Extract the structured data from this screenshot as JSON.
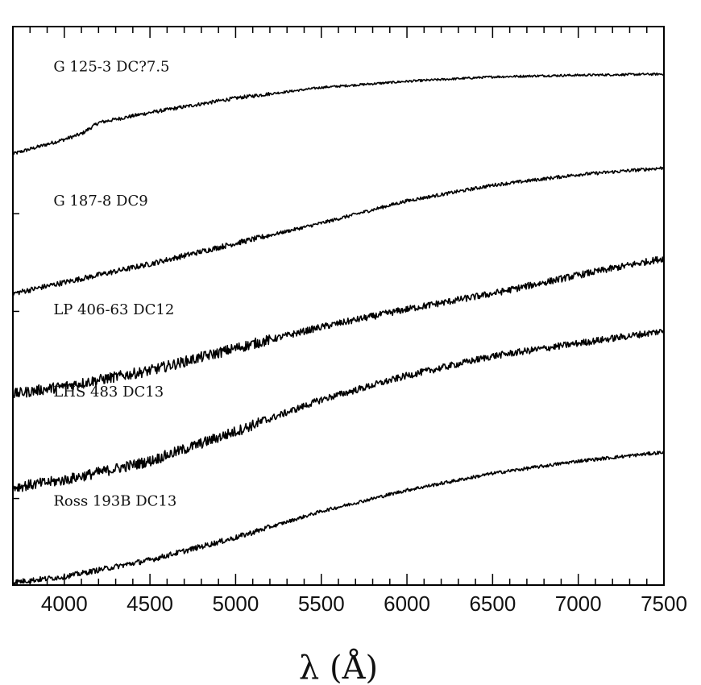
{
  "chart_data": {
    "type": "line",
    "title": "",
    "xlabel": "λ (Å)",
    "ylabel": "",
    "xlim": [
      3700,
      7500
    ],
    "x_ticks": [
      4000,
      4500,
      5000,
      5500,
      6000,
      6500,
      7000,
      7500
    ],
    "x_tick_labels": [
      "4000",
      "4500",
      "5000",
      "5500",
      "6000",
      "6500",
      "7000",
      "7500"
    ],
    "ylim": [
      0,
      1
    ],
    "y_ticks_labeled": false,
    "grid": false,
    "legend": "none",
    "note": "",
    "series": [
      {
        "name": "G 125-3 DC?7.5",
        "label_x": 4200,
        "label_y": 0.92,
        "x": [
          3700,
          4000,
          4100,
          4200,
          4500,
          5000,
          5500,
          6000,
          6500,
          6800,
          7000,
          7500
        ],
        "y": [
          0.772,
          0.798,
          0.808,
          0.828,
          0.846,
          0.872,
          0.891,
          0.902,
          0.91,
          0.912,
          0.913,
          0.915
        ],
        "noise": 0.002
      },
      {
        "name": "G 187-8 DC9",
        "label_x": 4200,
        "label_y": 0.68,
        "x": [
          3700,
          4000,
          4500,
          5000,
          5500,
          6000,
          6500,
          7000,
          7500
        ],
        "y": [
          0.522,
          0.542,
          0.575,
          0.612,
          0.648,
          0.688,
          0.716,
          0.735,
          0.747
        ],
        "noise": 0.003
      },
      {
        "name": "LP 406-63 DC12",
        "label_x": 4200,
        "label_y": 0.485,
        "x": [
          3700,
          4000,
          4500,
          5000,
          5500,
          6000,
          6500,
          7000,
          7500
        ],
        "y": [
          0.342,
          0.356,
          0.384,
          0.424,
          0.462,
          0.494,
          0.522,
          0.555,
          0.585
        ],
        "noise": 0.006
      },
      {
        "name": "LHS 483 DC13",
        "label_x": 4200,
        "label_y": 0.338,
        "x": [
          3700,
          4000,
          4500,
          5000,
          5500,
          6000,
          6500,
          7000,
          7500
        ],
        "y": [
          0.175,
          0.188,
          0.222,
          0.275,
          0.332,
          0.375,
          0.41,
          0.433,
          0.455
        ],
        "noise": 0.006
      },
      {
        "name": "Ross 193B DC13",
        "label_x": 4200,
        "label_y": 0.142,
        "x": [
          3700,
          4000,
          4500,
          5000,
          5500,
          6000,
          6500,
          7000,
          7500
        ],
        "y": [
          0.005,
          0.015,
          0.045,
          0.085,
          0.132,
          0.17,
          0.2,
          0.222,
          0.238
        ],
        "noise": 0.003
      }
    ]
  }
}
